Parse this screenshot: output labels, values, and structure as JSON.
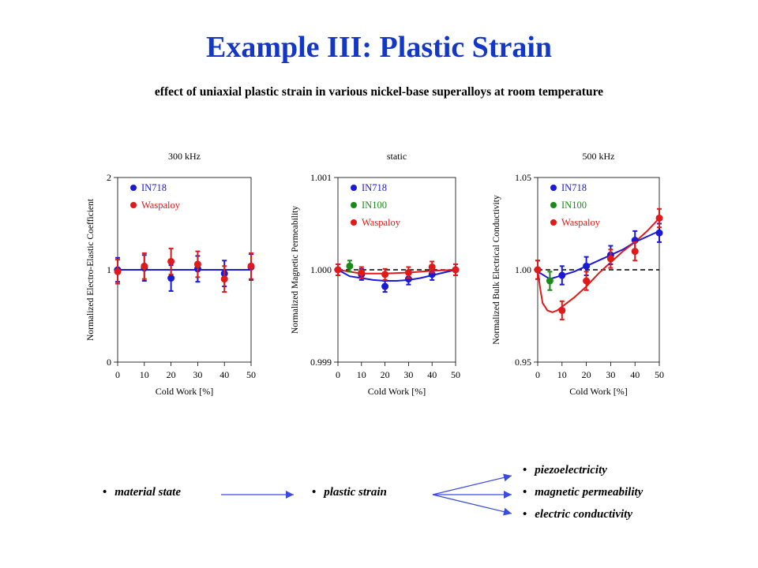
{
  "title": "Example III: Plastic Strain",
  "subtitle": "effect of uniaxial  plastic strain in various nickel-base superalloys at room temperature",
  "colors": {
    "IN718": "#1a1ad6",
    "IN100": "#1a8a1a",
    "Waspaloy": "#e01a1a",
    "title": "#1338c8"
  },
  "chart_data": [
    {
      "type": "scatter",
      "title": "300 kHz",
      "xlabel": "Cold Work [%]",
      "ylabel": "Normalized Electro-Elastic Coefficient",
      "xlim": [
        0,
        50
      ],
      "ylim": [
        0,
        2
      ],
      "xticks": [
        "0",
        "10",
        "20",
        "30",
        "40",
        "50"
      ],
      "yticks": [
        "0",
        "1",
        "2"
      ],
      "legend": [
        "IN718",
        "Waspaloy"
      ],
      "legend_position": "top-left",
      "reference_line": null,
      "series": [
        {
          "name": "IN718",
          "x": [
            0,
            10,
            20,
            30,
            40,
            50
          ],
          "y": [
            1.0,
            1.02,
            0.91,
            1.01,
            0.96,
            1.03
          ],
          "err": [
            0.13,
            0.14,
            0.14,
            0.14,
            0.14,
            0.14
          ],
          "fit": [
            [
              0,
              1.0
            ],
            [
              50,
              1.0
            ]
          ]
        },
        {
          "name": "Waspaloy",
          "x": [
            0,
            10,
            20,
            30,
            40,
            50
          ],
          "y": [
            0.98,
            1.04,
            1.09,
            1.06,
            0.9,
            1.04
          ],
          "err": [
            0.13,
            0.14,
            0.14,
            0.14,
            0.14,
            0.14
          ],
          "fit": null
        }
      ]
    },
    {
      "type": "scatter",
      "title": "static",
      "xlabel": "Cold Work [%]",
      "ylabel": "Normalized Magnetic Permeability",
      "xlim": [
        0,
        50
      ],
      "ylim": [
        0.999,
        1.001
      ],
      "xticks": [
        "0",
        "10",
        "20",
        "30",
        "40",
        "50"
      ],
      "yticks": [
        "0.999",
        "1.000",
        "1.001"
      ],
      "legend": [
        "IN718",
        "IN100",
        "Waspaloy"
      ],
      "legend_position": "top-left",
      "reference_line": 1.0,
      "series": [
        {
          "name": "IN718",
          "x": [
            0,
            10,
            20,
            30,
            40,
            50
          ],
          "y": [
            1.0,
            0.99995,
            0.99982,
            0.9999,
            0.99995,
            1.0
          ],
          "err": [
            6e-05,
            6e-05,
            6e-05,
            6e-05,
            6e-05,
            6e-05
          ],
          "fit": [
            [
              0,
              1.0
            ],
            [
              5,
              0.99993
            ],
            [
              10,
              0.99991
            ],
            [
              15,
              0.99989
            ],
            [
              20,
              0.99988
            ],
            [
              25,
              0.99988
            ],
            [
              30,
              0.99989
            ],
            [
              35,
              0.99991
            ],
            [
              40,
              0.99994
            ],
            [
              45,
              0.99997
            ],
            [
              50,
              1.0
            ]
          ]
        },
        {
          "name": "IN100",
          "x": [
            5
          ],
          "y": [
            1.00004
          ],
          "err": [
            6e-05
          ],
          "fit": null
        },
        {
          "name": "Waspaloy",
          "x": [
            0,
            10,
            20,
            30,
            40,
            50
          ],
          "y": [
            1.0,
            0.99997,
            0.99995,
            0.99997,
            1.00003,
            1.0
          ],
          "err": [
            6e-05,
            6e-05,
            6e-05,
            6e-05,
            6e-05,
            6e-05
          ],
          "fit": [
            [
              0,
              1.0
            ],
            [
              10,
              0.99996
            ],
            [
              20,
              0.99996
            ],
            [
              30,
              0.99997
            ],
            [
              40,
              0.99999
            ],
            [
              50,
              1.0
            ]
          ]
        }
      ]
    },
    {
      "type": "scatter",
      "title": "500 kHz",
      "xlabel": "Cold Work [%]",
      "ylabel": "Normalized Bulk Electrical Conductivity",
      "xlim": [
        0,
        50
      ],
      "ylim": [
        0.95,
        1.05
      ],
      "xticks": [
        "0",
        "10",
        "20",
        "30",
        "40",
        "50"
      ],
      "yticks": [
        "0.95",
        "1.00",
        "1.05"
      ],
      "legend": [
        "IN718",
        "IN100",
        "Waspaloy"
      ],
      "legend_position": "top-left",
      "reference_line": 1.0,
      "series": [
        {
          "name": "IN718",
          "x": [
            0,
            10,
            20,
            30,
            40,
            50
          ],
          "y": [
            1.0,
            0.997,
            1.002,
            1.008,
            1.016,
            1.02
          ],
          "err": [
            0.005,
            0.005,
            0.005,
            0.005,
            0.005,
            0.005
          ],
          "fit": [
            [
              0,
              0.999
            ],
            [
              5,
              0.995
            ],
            [
              10,
              0.997
            ],
            [
              15,
              0.999
            ],
            [
              20,
              1.002
            ],
            [
              25,
              1.005
            ],
            [
              30,
              1.008
            ],
            [
              35,
              1.011
            ],
            [
              40,
              1.015
            ],
            [
              45,
              1.018
            ],
            [
              50,
              1.021
            ]
          ]
        },
        {
          "name": "IN100",
          "x": [
            5
          ],
          "y": [
            0.994
          ],
          "err": [
            0.005
          ],
          "fit": null
        },
        {
          "name": "Waspaloy",
          "x": [
            0,
            10,
            20,
            30,
            40,
            50
          ],
          "y": [
            1.0,
            0.978,
            0.994,
            1.006,
            1.01,
            1.028
          ],
          "err": [
            0.005,
            0.005,
            0.005,
            0.005,
            0.005,
            0.005
          ],
          "fit": [
            [
              0,
              1.0
            ],
            [
              1,
              0.99
            ],
            [
              2,
              0.982
            ],
            [
              4,
              0.978
            ],
            [
              6,
              0.977
            ],
            [
              8,
              0.978
            ],
            [
              10,
              0.98
            ],
            [
              15,
              0.985
            ],
            [
              20,
              0.991
            ],
            [
              25,
              0.998
            ],
            [
              30,
              1.004
            ],
            [
              35,
              1.01
            ],
            [
              40,
              1.015
            ],
            [
              45,
              1.021
            ],
            [
              50,
              1.028
            ]
          ]
        }
      ]
    }
  ],
  "flow": {
    "source": "material state",
    "middle": "plastic strain",
    "outputs": [
      "piezoelectricity",
      "magnetic permeability",
      "electric conductivity"
    ]
  }
}
